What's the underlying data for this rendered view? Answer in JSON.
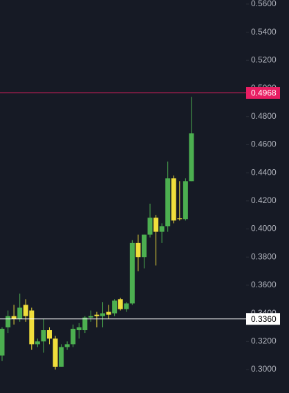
{
  "chart_data": {
    "type": "candlestick",
    "up_color": "#4caf50",
    "down_color": "#f0de3c",
    "open": [
      0.31,
      0.33,
      0.338,
      0.336,
      0.346,
      0.342,
      0.318,
      0.32,
      0.328,
      0.322,
      0.302,
      0.316,
      0.318,
      0.328,
      0.328,
      0.337,
      0.339,
      0.338,
      0.341,
      0.34,
      0.35,
      0.343,
      0.347,
      0.39,
      0.38,
      0.396,
      0.408,
      0.398,
      0.402,
      0.436,
      0.4075,
      0.407,
      0.434
    ],
    "high": [
      0.33,
      0.342,
      0.346,
      0.354,
      0.35,
      0.344,
      0.322,
      0.336,
      0.33,
      0.324,
      0.318,
      0.32,
      0.332,
      0.333,
      0.338,
      0.342,
      0.341,
      0.348,
      0.346,
      0.35,
      0.351,
      0.348,
      0.392,
      0.396,
      0.396,
      0.418,
      0.41,
      0.404,
      0.448,
      0.438,
      0.434,
      0.436,
      0.494
    ],
    "low": [
      0.306,
      0.326,
      0.332,
      0.334,
      0.334,
      0.314,
      0.316,
      0.312,
      0.318,
      0.3,
      0.302,
      0.314,
      0.316,
      0.322,
      0.326,
      0.334,
      0.33,
      0.33,
      0.336,
      0.338,
      0.342,
      0.341,
      0.346,
      0.37,
      0.372,
      0.394,
      0.374,
      0.39,
      0.398,
      0.404,
      0.406,
      0.406,
      0.434
    ],
    "close": [
      0.329,
      0.338,
      0.336,
      0.344,
      0.338,
      0.318,
      0.32,
      0.328,
      0.322,
      0.302,
      0.316,
      0.318,
      0.329,
      0.33,
      0.337,
      0.338,
      0.338,
      0.34,
      0.339,
      0.349,
      0.343,
      0.347,
      0.39,
      0.38,
      0.396,
      0.408,
      0.398,
      0.402,
      0.436,
      0.406,
      0.407,
      0.434,
      0.468
    ],
    "ylim": [
      0.2833,
      0.5629
    ],
    "yticks": [
      {
        "value": 0.3,
        "label": "0.3000"
      },
      {
        "value": 0.32,
        "label": "0.3200"
      },
      {
        "value": 0.34,
        "label": "0.3400"
      },
      {
        "value": 0.36,
        "label": "0.3600"
      },
      {
        "value": 0.38,
        "label": "0.3800"
      },
      {
        "value": 0.4,
        "label": "0.4000"
      },
      {
        "value": 0.42,
        "label": "0.4200"
      },
      {
        "value": 0.44,
        "label": "0.4400"
      },
      {
        "value": 0.46,
        "label": "0.4600"
      },
      {
        "value": 0.48,
        "label": "0.4800"
      },
      {
        "value": 0.5,
        "label": "0.5000"
      },
      {
        "value": 0.52,
        "label": "0.5200"
      },
      {
        "value": 0.54,
        "label": "0.5400"
      },
      {
        "value": 0.56,
        "label": "0.5600"
      }
    ],
    "price_lines": [
      {
        "value": 0.4968,
        "label": "0.4968",
        "color": "#e91e63"
      },
      {
        "value": 0.336,
        "label": "0.3360",
        "color": "#ffffff"
      }
    ]
  }
}
